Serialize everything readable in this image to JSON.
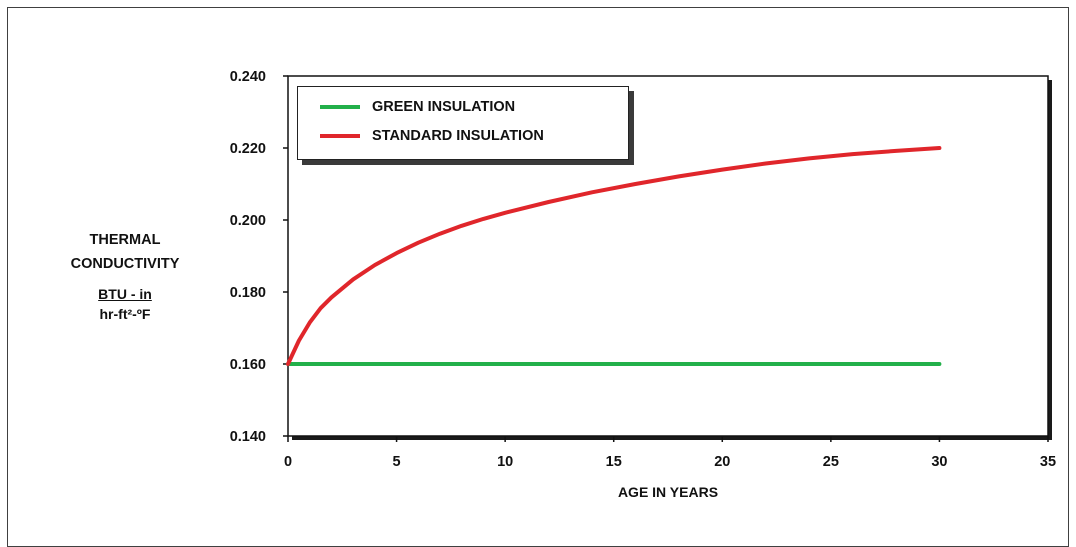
{
  "chart_data": {
    "type": "line",
    "title": "",
    "xlabel": "AGE IN YEARS",
    "ylabel": [
      "THERMAL",
      "CONDUCTIVITY"
    ],
    "ylabel_units": {
      "numerator": "BTU - in",
      "denominator": "hr-ft²-ºF"
    },
    "xlim": [
      0,
      35
    ],
    "ylim": [
      0.14,
      0.24
    ],
    "x_ticks": [
      "0",
      "5",
      "10",
      "15",
      "20",
      "25",
      "30",
      "35"
    ],
    "y_ticks": [
      "0.140",
      "0.160",
      "0.180",
      "0.200",
      "0.220",
      "0.240"
    ],
    "grid": false,
    "legend_position": "top-left",
    "series": [
      {
        "name": "GREEN INSULATION",
        "color": "#22b04a",
        "x": [
          0,
          30
        ],
        "y": [
          0.16,
          0.16
        ]
      },
      {
        "name": "STANDARD INSULATION",
        "color": "#e0262b",
        "x": [
          0,
          0.5,
          1,
          1.5,
          2,
          3,
          4,
          5,
          6,
          7,
          8,
          9,
          10,
          12,
          14,
          16,
          18,
          20,
          22,
          24,
          26,
          28,
          30
        ],
        "y": [
          0.16,
          0.1665,
          0.1715,
          0.1755,
          0.1785,
          0.1835,
          0.1875,
          0.1908,
          0.1937,
          0.1962,
          0.1984,
          0.2003,
          0.202,
          0.205,
          0.2077,
          0.21,
          0.2121,
          0.214,
          0.2157,
          0.2171,
          0.2183,
          0.2192,
          0.22
        ]
      }
    ]
  }
}
